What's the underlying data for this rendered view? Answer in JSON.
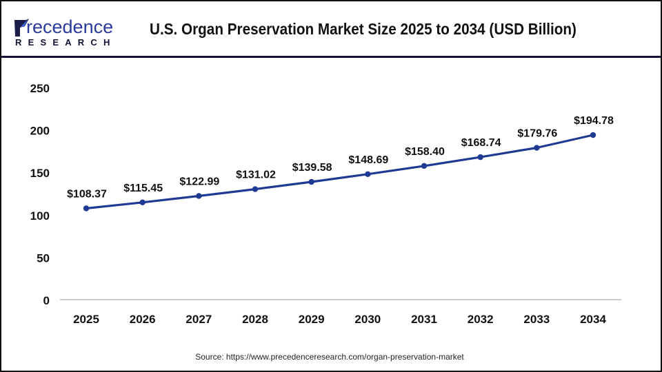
{
  "header": {
    "logo": {
      "brand_word": "recedence",
      "brand_initial": "P",
      "brand_sub": "RESEARCH",
      "icon": "logo-feather-icon"
    },
    "title": "U.S. Organ Preservation Market Size 2025 to 2034 (USD Billion)"
  },
  "colors": {
    "line": "#1f3a93",
    "marker": "#1f3a93",
    "axis": "#bbbbbb",
    "divider": "#15123a",
    "logo_blue": "#2a3a9c"
  },
  "chart_data": {
    "type": "line",
    "title": "U.S. Organ Preservation Market Size 2025 to 2034 (USD Billion)",
    "xlabel": "",
    "ylabel": "",
    "categories": [
      "2025",
      "2026",
      "2027",
      "2028",
      "2029",
      "2030",
      "2031",
      "2032",
      "2033",
      "2034"
    ],
    "series": [
      {
        "name": "U.S. Organ Preservation Market Size (USD Billion)",
        "values": [
          108.37,
          115.45,
          122.99,
          131.02,
          139.58,
          148.69,
          158.4,
          168.74,
          179.76,
          194.78
        ],
        "data_labels": [
          "$108.37",
          "$115.45",
          "$122.99",
          "$131.02",
          "$139.58",
          "$148.69",
          "$158.40",
          "$168.74",
          "$179.76",
          "$194.78"
        ]
      }
    ],
    "ylim": [
      0,
      250
    ],
    "yticks": [
      0,
      50,
      100,
      150,
      200,
      250
    ],
    "ytick_labels": [
      "0",
      "50",
      "100",
      "150",
      "200",
      "250"
    ],
    "grid": false,
    "legend": "none",
    "markers": true
  },
  "footer": {
    "source": "Source: https://www.precedenceresearch.com/organ-preservation-market"
  }
}
